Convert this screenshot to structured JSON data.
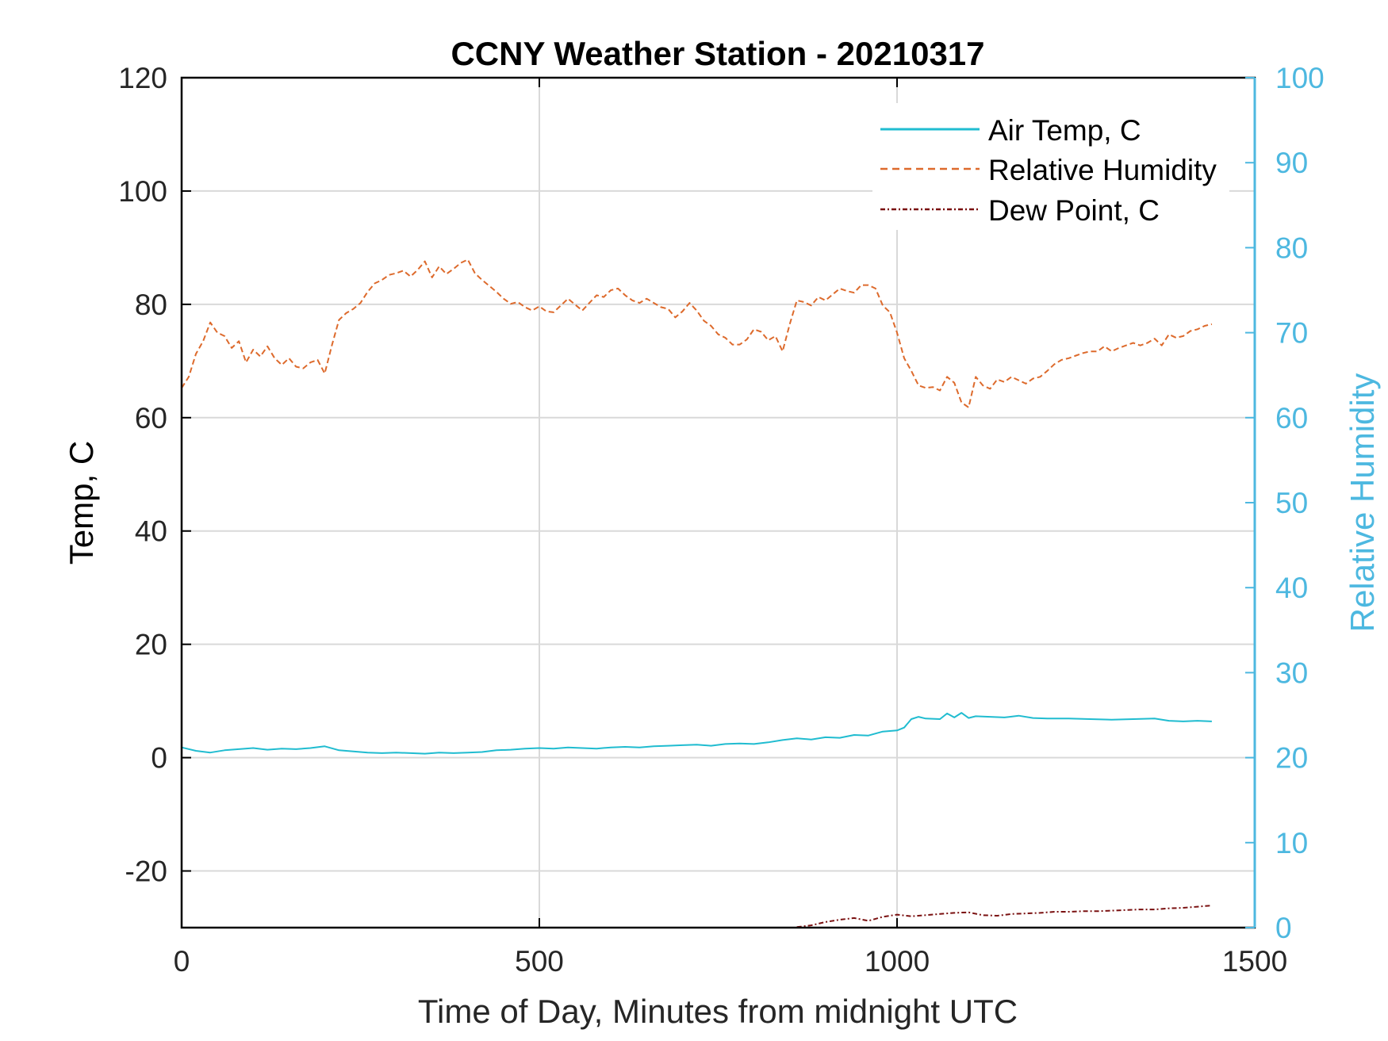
{
  "chart_data": {
    "type": "line",
    "title": "CCNY Weather Station - 20210317",
    "xlabel": "Time of Day, Minutes from midnight UTC",
    "ylabel_left": "Temp, C",
    "ylabel_right": "Relative Humidity",
    "xlim": [
      0,
      1500
    ],
    "ylim_left": [
      -30,
      120
    ],
    "ylim_right": [
      0,
      100
    ],
    "x_ticks": [
      "0",
      "500",
      "1000",
      "1500"
    ],
    "x_tick_values": [
      0,
      500,
      1000,
      1500
    ],
    "y_left_ticks": [
      "-20",
      "0",
      "20",
      "40",
      "60",
      "80",
      "100",
      "120"
    ],
    "y_left_tick_values": [
      -20,
      0,
      20,
      40,
      60,
      80,
      100,
      120
    ],
    "y_right_ticks": [
      "0",
      "10",
      "20",
      "30",
      "40",
      "50",
      "60",
      "70",
      "80",
      "90",
      "100"
    ],
    "y_right_tick_values": [
      0,
      10,
      20,
      30,
      40,
      50,
      60,
      70,
      80,
      90,
      100
    ],
    "grid": true,
    "legend_position": "top-right",
    "colors": {
      "air_temp": "#20bcd0",
      "humidity": "#dd6a2c",
      "dew_point": "#7a1010",
      "right_axis": "#4db8e0",
      "grid": "#d9d9d9",
      "axis": "#000000"
    },
    "series": [
      {
        "name": "Air Temp, C",
        "axis": "left",
        "style": "solid",
        "x": [
          0,
          20,
          40,
          60,
          80,
          100,
          120,
          140,
          160,
          180,
          200,
          220,
          240,
          260,
          280,
          300,
          320,
          340,
          360,
          380,
          400,
          420,
          440,
          460,
          480,
          500,
          520,
          540,
          560,
          580,
          600,
          620,
          640,
          660,
          680,
          700,
          720,
          740,
          760,
          780,
          800,
          820,
          840,
          860,
          880,
          900,
          920,
          940,
          960,
          980,
          1000,
          1010,
          1020,
          1030,
          1040,
          1060,
          1070,
          1080,
          1090,
          1100,
          1110,
          1130,
          1150,
          1170,
          1190,
          1210,
          1240,
          1270,
          1300,
          1330,
          1360,
          1380,
          1400,
          1420,
          1440
        ],
        "values": [
          1.8,
          1.2,
          0.9,
          1.3,
          1.5,
          1.7,
          1.4,
          1.6,
          1.5,
          1.7,
          2.0,
          1.3,
          1.1,
          0.9,
          0.8,
          0.9,
          0.8,
          0.7,
          0.9,
          0.8,
          0.9,
          1.0,
          1.3,
          1.4,
          1.6,
          1.7,
          1.6,
          1.8,
          1.7,
          1.6,
          1.8,
          1.9,
          1.8,
          2.0,
          2.1,
          2.2,
          2.3,
          2.1,
          2.4,
          2.5,
          2.4,
          2.7,
          3.1,
          3.4,
          3.2,
          3.6,
          3.5,
          4.0,
          3.9,
          4.6,
          4.8,
          5.3,
          6.8,
          7.2,
          6.9,
          6.8,
          7.8,
          7.1,
          7.9,
          7.0,
          7.3,
          7.2,
          7.1,
          7.4,
          7.0,
          6.9,
          6.9,
          6.8,
          6.7,
          6.8,
          6.9,
          6.5,
          6.4,
          6.5,
          6.4
        ]
      },
      {
        "name": "Relative Humidity",
        "axis": "right",
        "style": "dashed",
        "x": [
          0,
          10,
          20,
          30,
          40,
          50,
          60,
          70,
          80,
          90,
          100,
          110,
          120,
          130,
          140,
          150,
          160,
          170,
          180,
          190,
          200,
          210,
          220,
          230,
          240,
          250,
          260,
          270,
          280,
          290,
          300,
          310,
          320,
          330,
          340,
          350,
          360,
          370,
          380,
          390,
          400,
          410,
          420,
          430,
          440,
          450,
          460,
          470,
          480,
          490,
          500,
          510,
          520,
          530,
          540,
          550,
          560,
          570,
          580,
          590,
          600,
          610,
          620,
          630,
          640,
          650,
          660,
          670,
          680,
          690,
          700,
          710,
          720,
          730,
          740,
          750,
          760,
          770,
          780,
          790,
          800,
          810,
          820,
          830,
          840,
          850,
          860,
          870,
          880,
          890,
          900,
          910,
          920,
          930,
          940,
          950,
          960,
          970,
          980,
          990,
          1000,
          1010,
          1020,
          1030,
          1040,
          1050,
          1060,
          1070,
          1080,
          1090,
          1100,
          1110,
          1120,
          1130,
          1140,
          1150,
          1160,
          1170,
          1180,
          1190,
          1200,
          1210,
          1220,
          1230,
          1240,
          1250,
          1260,
          1270,
          1280,
          1290,
          1300,
          1310,
          1320,
          1330,
          1340,
          1350,
          1360,
          1370,
          1380,
          1390,
          1400,
          1410,
          1420,
          1430,
          1440
        ],
        "values": [
          63.5,
          64.8,
          67.5,
          69.0,
          71.2,
          70.0,
          69.6,
          68.2,
          69.0,
          66.5,
          68.0,
          67.2,
          68.4,
          67.0,
          66.2,
          67.0,
          66.0,
          65.8,
          66.5,
          66.8,
          65.2,
          68.5,
          71.5,
          72.3,
          72.8,
          73.5,
          74.8,
          75.8,
          76.2,
          76.8,
          77.0,
          77.3,
          76.6,
          77.4,
          78.4,
          76.5,
          77.8,
          76.9,
          77.5,
          78.2,
          78.6,
          77.0,
          76.2,
          75.5,
          74.8,
          74.0,
          73.4,
          73.6,
          73.0,
          72.6,
          73.1,
          72.5,
          72.4,
          73.2,
          74.0,
          73.3,
          72.6,
          73.5,
          74.4,
          74.2,
          75.0,
          75.2,
          74.4,
          73.8,
          73.5,
          74.0,
          73.5,
          73.0,
          72.8,
          71.8,
          72.5,
          73.5,
          72.6,
          71.4,
          70.8,
          69.8,
          69.4,
          68.6,
          68.6,
          69.2,
          70.4,
          70.1,
          69.1,
          69.6,
          67.8,
          71.0,
          73.8,
          73.6,
          73.2,
          74.2,
          73.8,
          74.5,
          75.2,
          74.9,
          74.7,
          75.6,
          75.6,
          75.2,
          73.2,
          72.4,
          70.0,
          67.0,
          65.5,
          63.8,
          63.5,
          63.6,
          63.2,
          64.8,
          64.1,
          61.8,
          61.2,
          64.8,
          63.8,
          63.4,
          64.5,
          64.2,
          64.8,
          64.4,
          64.0,
          64.6,
          64.8,
          65.5,
          66.3,
          66.8,
          67.0,
          67.3,
          67.6,
          67.8,
          67.8,
          68.4,
          67.8,
          68.2,
          68.5,
          68.8,
          68.5,
          68.8,
          69.3,
          68.5,
          69.8,
          69.4,
          69.6,
          70.2,
          70.4,
          70.8,
          71.0
        ]
      },
      {
        "name": "Dew Point, C",
        "axis": "left",
        "style": "dash-dot",
        "x": [
          860,
          880,
          900,
          920,
          940,
          960,
          980,
          1000,
          1020,
          1040,
          1060,
          1080,
          1100,
          1120,
          1140,
          1160,
          1180,
          1200,
          1220,
          1240,
          1260,
          1280,
          1300,
          1320,
          1340,
          1360,
          1380,
          1400,
          1420,
          1440
        ],
        "values": [
          -29.9,
          -29.6,
          -29.0,
          -28.6,
          -28.3,
          -28.8,
          -28.1,
          -27.7,
          -28.0,
          -27.8,
          -27.6,
          -27.4,
          -27.3,
          -27.8,
          -27.9,
          -27.6,
          -27.5,
          -27.4,
          -27.2,
          -27.2,
          -27.1,
          -27.1,
          -27.0,
          -26.9,
          -26.8,
          -26.8,
          -26.6,
          -26.5,
          -26.3,
          -26.1
        ]
      }
    ]
  }
}
